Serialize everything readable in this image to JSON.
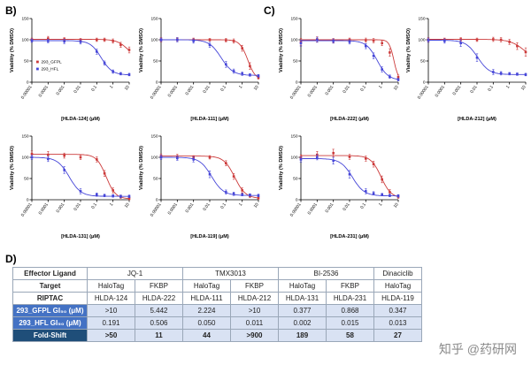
{
  "panels": {
    "b": "B)",
    "c": "C)",
    "d": "D)"
  },
  "colors": {
    "gfpl_red": "#cc3b3b",
    "hfl_blue": "#4646d8",
    "table_blue": "#4472c4",
    "table_dark_blue": "#1f4e79",
    "table_light_blue": "#d9e2f3"
  },
  "legend": {
    "items": [
      {
        "label": "293_GFPL",
        "color": "#cc3b3b"
      },
      {
        "label": "293_HFL",
        "color": "#4646d8"
      }
    ]
  },
  "axis": {
    "y_ticks": [
      0,
      50,
      100,
      150
    ],
    "x_tick_values": [
      1e-05,
      0.0001,
      0.001,
      0.01,
      0.1,
      1,
      10
    ],
    "x_tick_labels": [
      "0.00001",
      "0.0001",
      "0.001",
      "0.01",
      "0.1",
      "1",
      "10"
    ]
  },
  "chart_data": [
    {
      "type": "line",
      "id": "HLDA-124",
      "xlabel": "[HLDA-124] (μM)",
      "ylabel": "Viability (% DMSO)",
      "xlim": [
        1e-05,
        10
      ],
      "ylim": [
        0,
        150
      ],
      "xscale": "log",
      "x": [
        1e-05,
        0.0001,
        0.001,
        0.01,
        0.1,
        0.3,
        1,
        3,
        10
      ],
      "series": [
        {
          "name": "293_GFPL",
          "color": "#cc3b3b",
          "y": [
            100,
            103,
            101,
            100,
            100,
            100,
            97,
            88,
            76
          ],
          "err": [
            4,
            5,
            4,
            3,
            4,
            4,
            5,
            6,
            7
          ],
          "fit": {
            "top": 101,
            "bottom": 55,
            "ec50": 8,
            "hill": 1.3
          }
        },
        {
          "name": "293_HFL",
          "color": "#4646d8",
          "y": [
            98,
            97,
            96,
            95,
            72,
            45,
            25,
            20,
            18
          ],
          "err": [
            4,
            4,
            5,
            5,
            6,
            5,
            4,
            3,
            3
          ],
          "fit": {
            "top": 98,
            "bottom": 17,
            "ec50": 0.19,
            "hill": 1.3
          }
        }
      ]
    },
    {
      "type": "line",
      "id": "HLDA-111",
      "xlabel": "[HLDA-111] (μM)",
      "ylabel": "Viability (% DMSO)",
      "xlim": [
        1e-05,
        10
      ],
      "ylim": [
        0,
        150
      ],
      "xscale": "log",
      "x": [
        1e-05,
        0.0001,
        0.001,
        0.01,
        0.1,
        0.3,
        1,
        3,
        10
      ],
      "series": [
        {
          "name": "293_GFPL",
          "color": "#cc3b3b",
          "y": [
            100,
            101,
            100,
            100,
            99,
            97,
            80,
            38,
            11
          ],
          "err": [
            5,
            4,
            4,
            3,
            4,
            5,
            7,
            8,
            4
          ],
          "fit": {
            "top": 100,
            "bottom": 5,
            "ec50": 2.2,
            "hill": 1.8
          }
        },
        {
          "name": "293_HFL",
          "color": "#4646d8",
          "y": [
            100,
            100,
            97,
            88,
            42,
            26,
            20,
            17,
            15
          ],
          "err": [
            4,
            5,
            5,
            6,
            7,
            5,
            4,
            3,
            3
          ],
          "fit": {
            "top": 100,
            "bottom": 16,
            "ec50": 0.05,
            "hill": 1.2
          }
        }
      ]
    },
    {
      "type": "line",
      "id": "HLDA-222",
      "xlabel": "[HLDA-222] (μM)",
      "ylabel": "Viability (% DMSO)",
      "xlim": [
        1e-05,
        10
      ],
      "ylim": [
        0,
        150
      ],
      "xscale": "log",
      "x": [
        1e-05,
        0.0001,
        0.001,
        0.01,
        0.1,
        0.3,
        1,
        3,
        10
      ],
      "series": [
        {
          "name": "293_GFPL",
          "color": "#cc3b3b",
          "y": [
            95,
            101,
            98,
            100,
            99,
            98,
            92,
            70,
            12
          ],
          "err": [
            8,
            6,
            5,
            4,
            5,
            5,
            6,
            9,
            5
          ],
          "fit": {
            "top": 100,
            "bottom": 3,
            "ec50": 5.4,
            "hill": 3.0
          }
        },
        {
          "name": "293_HFL",
          "color": "#4646d8",
          "y": [
            92,
            100,
            97,
            95,
            85,
            62,
            30,
            13,
            6
          ],
          "err": [
            7,
            6,
            5,
            5,
            6,
            7,
            6,
            4,
            3
          ],
          "fit": {
            "top": 98,
            "bottom": 5,
            "ec50": 0.5,
            "hill": 1.3
          }
        }
      ]
    },
    {
      "type": "line",
      "id": "HLDA-212",
      "xlabel": "[HLDA-212] (μM)",
      "ylabel": "Viability (% DMSO)",
      "xlim": [
        1e-05,
        10
      ],
      "ylim": [
        0,
        150
      ],
      "xscale": "log",
      "x": [
        1e-05,
        0.0001,
        0.001,
        0.01,
        0.1,
        0.3,
        1,
        3,
        10
      ],
      "series": [
        {
          "name": "293_GFPL",
          "color": "#cc3b3b",
          "y": [
            100,
            100,
            101,
            100,
            101,
            100,
            95,
            85,
            71
          ],
          "err": [
            5,
            4,
            4,
            4,
            5,
            5,
            6,
            8,
            10
          ],
          "fit": {
            "top": 101,
            "bottom": 50,
            "ec50": 8,
            "hill": 1.0
          }
        },
        {
          "name": "293_HFL",
          "color": "#4646d8",
          "y": [
            99,
            97,
            92,
            58,
            24,
            21,
            20,
            19,
            18
          ],
          "err": [
            5,
            5,
            8,
            9,
            6,
            4,
            3,
            3,
            3
          ],
          "fit": {
            "top": 99,
            "bottom": 18,
            "ec50": 0.011,
            "hill": 1.2
          }
        }
      ]
    },
    {
      "type": "line",
      "id": "HLDA-131",
      "xlabel": "[HLDA-131] (μM)",
      "ylabel": "Viability (% DMSO)",
      "xlim": [
        1e-05,
        10
      ],
      "ylim": [
        0,
        150
      ],
      "xscale": "log",
      "x": [
        1e-05,
        0.0001,
        0.001,
        0.01,
        0.1,
        0.3,
        1,
        3,
        10
      ],
      "series": [
        {
          "name": "293_GFPL",
          "color": "#cc3b3b",
          "y": [
            108,
            106,
            104,
            100,
            95,
            62,
            22,
            7,
            3
          ],
          "err": [
            7,
            8,
            6,
            5,
            6,
            7,
            6,
            4,
            3
          ],
          "fit": {
            "top": 107,
            "bottom": 2,
            "ec50": 0.377,
            "hill": 1.5
          }
        },
        {
          "name": "293_HFL",
          "color": "#4646d8",
          "y": [
            100,
            96,
            70,
            20,
            12,
            10,
            9,
            8,
            8
          ],
          "err": [
            5,
            6,
            8,
            6,
            4,
            3,
            3,
            3,
            3
          ],
          "fit": {
            "top": 100,
            "bottom": 8,
            "ec50": 0.002,
            "hill": 1.2
          }
        }
      ]
    },
    {
      "type": "line",
      "id": "HLDA-119",
      "xlabel": "[HLDA-119] (μM)",
      "ylabel": "Viability (% DMSO)",
      "xlim": [
        1e-05,
        10
      ],
      "ylim": [
        0,
        150
      ],
      "xscale": "log",
      "x": [
        1e-05,
        0.0001,
        0.001,
        0.01,
        0.1,
        0.3,
        1,
        3,
        10
      ],
      "series": [
        {
          "name": "293_GFPL",
          "color": "#cc3b3b",
          "y": [
            103,
            102,
            100,
            100,
            86,
            55,
            22,
            9,
            4
          ],
          "err": [
            5,
            5,
            4,
            4,
            6,
            7,
            6,
            4,
            3
          ],
          "fit": {
            "top": 103,
            "bottom": 3,
            "ec50": 0.347,
            "hill": 1.3
          }
        },
        {
          "name": "293_HFL",
          "color": "#4646d8",
          "y": [
            100,
            98,
            95,
            60,
            18,
            14,
            12,
            11,
            10
          ],
          "err": [
            5,
            5,
            6,
            8,
            5,
            4,
            3,
            3,
            3
          ],
          "fit": {
            "top": 100,
            "bottom": 10,
            "ec50": 0.013,
            "hill": 1.2
          }
        }
      ]
    },
    {
      "type": "line",
      "id": "HLDA-231",
      "xlabel": "[HLDA-231] (μM)",
      "ylabel": "Viability (% DMSO)",
      "xlim": [
        1e-05,
        10
      ],
      "ylim": [
        0,
        150
      ],
      "xscale": "log",
      "x": [
        1e-05,
        0.0001,
        0.001,
        0.01,
        0.1,
        0.3,
        1,
        3,
        10
      ],
      "series": [
        {
          "name": "293_GFPL",
          "color": "#cc3b3b",
          "y": [
            100,
            106,
            110,
            101,
            97,
            84,
            48,
            18,
            7
          ],
          "err": [
            6,
            8,
            9,
            6,
            6,
            7,
            8,
            6,
            4
          ],
          "fit": {
            "top": 104,
            "bottom": 4,
            "ec50": 0.868,
            "hill": 1.4
          }
        },
        {
          "name": "293_HFL",
          "color": "#4646d8",
          "y": [
            95,
            100,
            92,
            60,
            20,
            15,
            12,
            10,
            9
          ],
          "err": [
            6,
            6,
            8,
            9,
            6,
            4,
            3,
            3,
            3
          ],
          "fit": {
            "top": 97,
            "bottom": 9,
            "ec50": 0.015,
            "hill": 1.2
          }
        }
      ]
    }
  ],
  "table": {
    "header_rows": [
      {
        "label": "Effector Ligand",
        "cells": [
          {
            "text": "JQ-1",
            "span": 2
          },
          {
            "text": "TMX3013",
            "span": 2
          },
          {
            "text": "BI-2536",
            "span": 2
          },
          {
            "text": "Dinaciclib",
            "span": 1
          }
        ]
      },
      {
        "label": "Target",
        "cells": [
          {
            "text": "HaloTag"
          },
          {
            "text": "FKBP"
          },
          {
            "text": "HaloTag"
          },
          {
            "text": "FKBP"
          },
          {
            "text": "HaloTag"
          },
          {
            "text": "FKBP"
          },
          {
            "text": "HaloTag"
          }
        ]
      },
      {
        "label": "RIPTAC",
        "cells": [
          {
            "text": "HLDA-124"
          },
          {
            "text": "HLDA-222"
          },
          {
            "text": "HLDA-111"
          },
          {
            "text": "HLDA-212"
          },
          {
            "text": "HLDA-131"
          },
          {
            "text": "HLDA-231"
          },
          {
            "text": "HLDA-119"
          }
        ]
      }
    ],
    "data_rows": [
      {
        "label": "293_GFPL GI₅₀ (μM)",
        "style": "blue",
        "values": [
          ">10",
          "5.442",
          "2.224",
          ">10",
          "0.377",
          "0.868",
          "0.347"
        ]
      },
      {
        "label": "293_HFL GI₅₀ (μM)",
        "style": "blue",
        "values": [
          "0.191",
          "0.506",
          "0.050",
          "0.011",
          "0.002",
          "0.015",
          "0.013"
        ]
      },
      {
        "label": "Fold-Shift",
        "style": "dark",
        "values": [
          ">50",
          "11",
          "44",
          ">900",
          "189",
          "58",
          "27"
        ]
      }
    ]
  },
  "watermark": "知乎 @药研网"
}
